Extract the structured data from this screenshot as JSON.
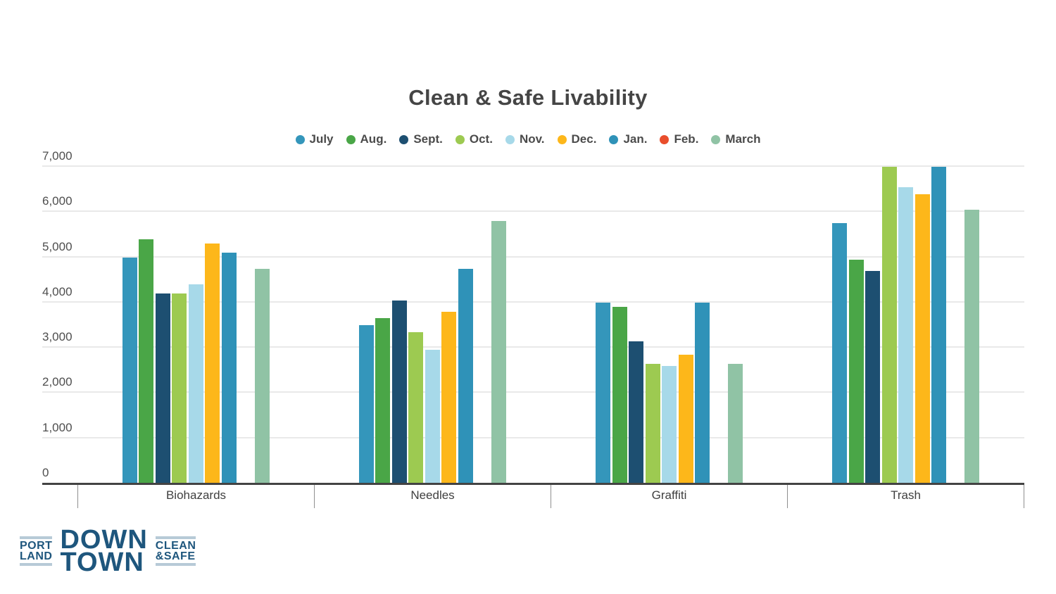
{
  "chart_data": {
    "type": "bar",
    "title": "Clean & Safe Livability",
    "categories": [
      "Biohazards",
      "Needles",
      "Graffiti",
      "Trash"
    ],
    "series": [
      {
        "name": "July",
        "color": "#3496bb",
        "values": [
          5000,
          3500,
          4000,
          5750
        ]
      },
      {
        "name": "Aug.",
        "color": "#4aa647",
        "values": [
          5400,
          3650,
          3900,
          4950
        ]
      },
      {
        "name": "Sept.",
        "color": "#1d4f71",
        "values": [
          4200,
          4050,
          3150,
          4700
        ]
      },
      {
        "name": "Oct.",
        "color": "#9dca51",
        "values": [
          4200,
          3350,
          2650,
          7000
        ]
      },
      {
        "name": "Nov.",
        "color": "#a7d9e9",
        "values": [
          4400,
          2950,
          2600,
          6550
        ]
      },
      {
        "name": "Dec.",
        "color": "#fdb71a",
        "values": [
          5300,
          3800,
          2850,
          6400
        ]
      },
      {
        "name": "Jan.",
        "color": "#2f92b8",
        "values": [
          5100,
          4750,
          4000,
          7000
        ]
      },
      {
        "name": "Feb.",
        "color": "#e94e2c",
        "values": [
          0,
          0,
          0,
          0
        ]
      },
      {
        "name": "March",
        "color": "#90c3a5",
        "values": [
          4750,
          5800,
          2650,
          6050
        ]
      }
    ],
    "ylim": [
      0,
      7000
    ],
    "yticks": [
      "0",
      "1,000",
      "2,000",
      "3,000",
      "4,000",
      "5,000",
      "6,000",
      "7,000"
    ],
    "grid": true,
    "legend_position": "top"
  },
  "logo": {
    "left_top": "PORT",
    "left_bottom": "LAND",
    "center_top": "DOWN",
    "center_bottom": "TOWN",
    "right_top": "CLEAN",
    "right_bottom": "&SAFE"
  },
  "colors": {
    "axis_line": "#434343",
    "gridline": "#e9e9e9",
    "tick": "#8f8f8f",
    "text": "#4b4b4b",
    "logo_navy": "#1e567d",
    "logo_rule": "#b7cad7"
  }
}
